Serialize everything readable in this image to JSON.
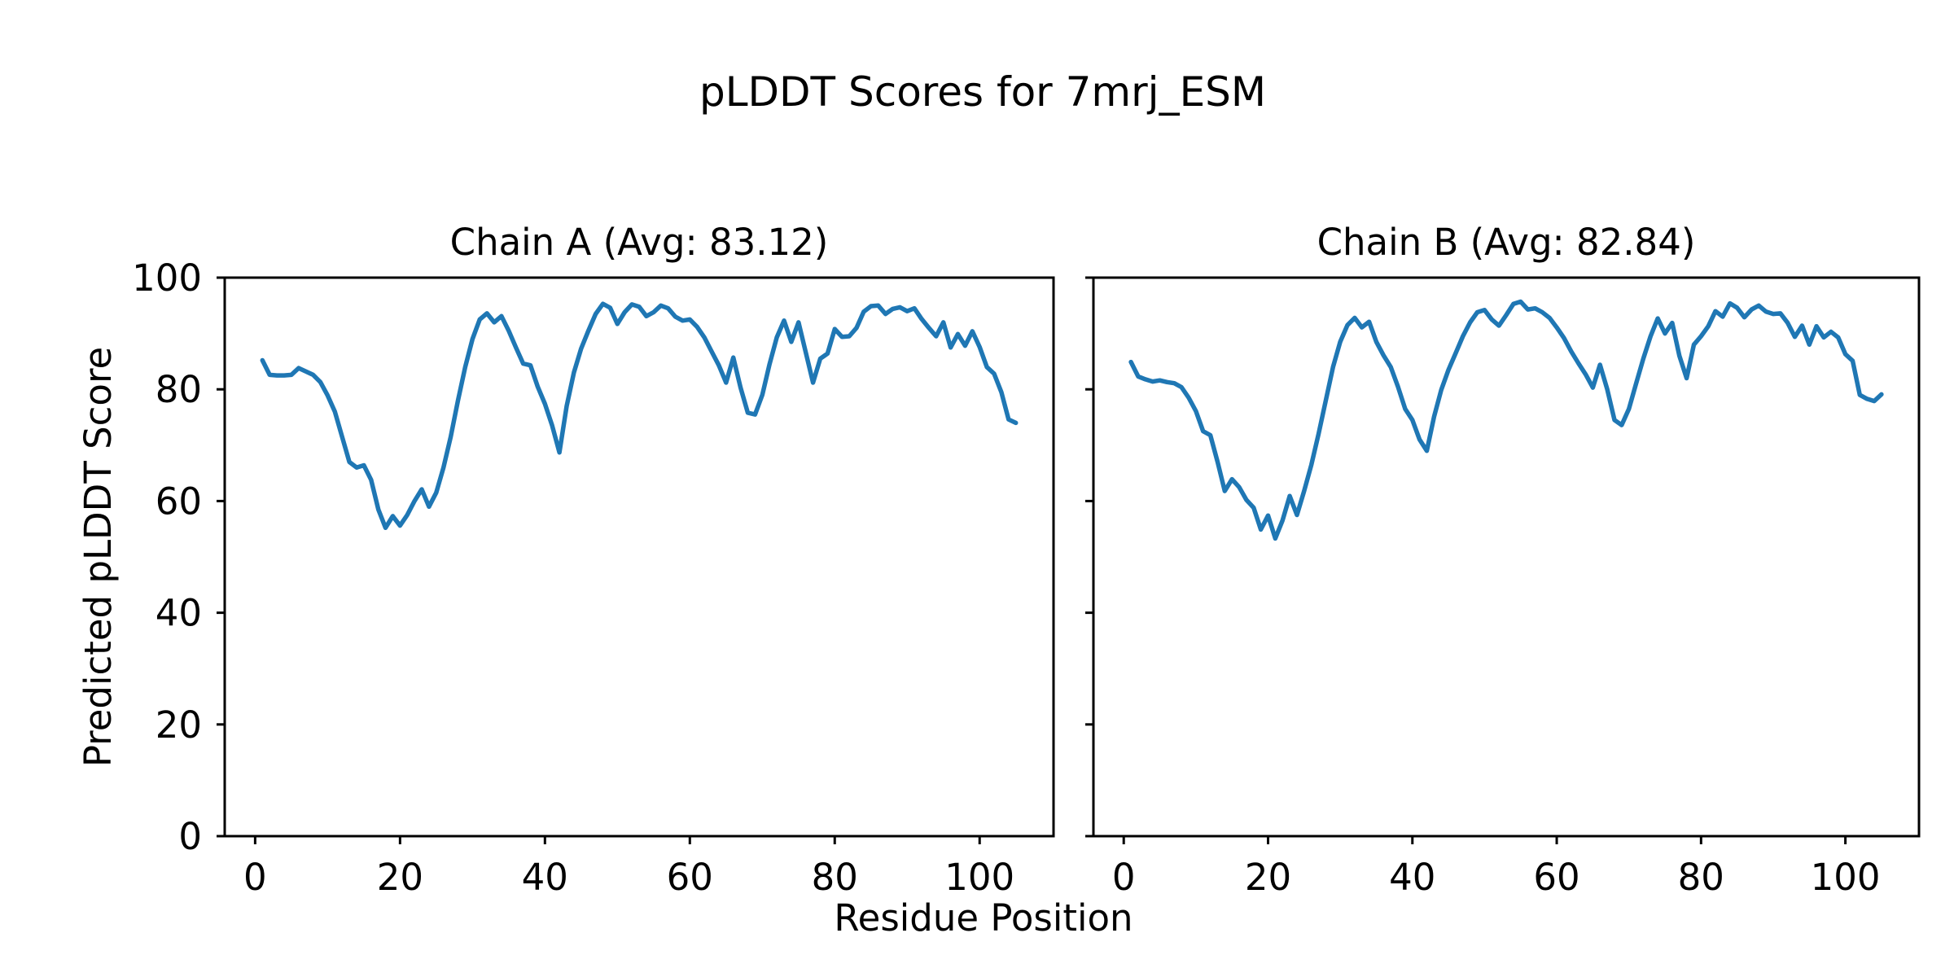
{
  "figure": {
    "suptitle": "pLDDT Scores for 7mrj_ESM",
    "supxlabel": "Residue Position",
    "ylabel": "Predicted pLDDT Score",
    "line_color": "#1f77b4",
    "axis_color": "#000000",
    "background_color": "#ffffff"
  },
  "chart_data": [
    {
      "type": "line",
      "title": "Chain A (Avg: 83.12)",
      "chain": "A",
      "average": 83.12,
      "xlabel": "Residue Position",
      "ylabel": "Predicted pLDDT Score",
      "x_start": 1,
      "x_step": 1,
      "xlim": [
        -4.2,
        110.2
      ],
      "ylim": [
        0,
        100
      ],
      "xticks": [
        0,
        20,
        40,
        60,
        80,
        100
      ],
      "yticks": [
        0,
        20,
        40,
        60,
        80,
        100
      ],
      "show_ytick_labels": true,
      "grid": false,
      "legend": "none",
      "values": [
        85.2,
        82.6,
        82.5,
        82.5,
        82.6,
        83.8,
        83.2,
        82.6,
        81.3,
        78.9,
        76.0,
        71.5,
        67.0,
        66.0,
        66.4,
        63.8,
        58.5,
        55.2,
        57.3,
        55.6,
        57.5,
        60.0,
        62.1,
        59.0,
        61.5,
        66.0,
        71.5,
        78.0,
        84.0,
        89.0,
        92.5,
        93.6,
        92.0,
        93.1,
        90.5,
        87.5,
        84.6,
        84.3,
        80.5,
        77.4,
        73.5,
        68.7,
        77.0,
        83.0,
        87.3,
        90.5,
        93.5,
        95.3,
        94.6,
        91.7,
        93.8,
        95.2,
        94.8,
        93.1,
        93.8,
        95.0,
        94.5,
        93.0,
        92.3,
        92.5,
        91.2,
        89.3,
        86.8,
        84.3,
        81.2,
        85.7,
        80.3,
        75.8,
        75.5,
        79.0,
        84.5,
        89.3,
        92.3,
        88.5,
        92.0,
        86.6,
        81.2,
        85.5,
        86.4,
        90.8,
        89.4,
        89.5,
        91.0,
        93.9,
        94.9,
        95.0,
        93.5,
        94.4,
        94.7,
        94.0,
        94.5,
        92.6,
        91.0,
        89.5,
        92.0,
        87.5,
        89.9,
        87.8,
        90.4,
        87.6,
        84.0,
        82.8,
        79.5,
        74.6,
        74.0
      ]
    },
    {
      "type": "line",
      "title": "Chain B (Avg: 82.84)",
      "chain": "B",
      "average": 82.84,
      "xlabel": "Residue Position",
      "ylabel": "Predicted pLDDT Score",
      "x_start": 1,
      "x_step": 1,
      "xlim": [
        -4.2,
        110.2
      ],
      "ylim": [
        0,
        100
      ],
      "xticks": [
        0,
        20,
        40,
        60,
        80,
        100
      ],
      "yticks": [
        0,
        20,
        40,
        60,
        80,
        100
      ],
      "show_ytick_labels": false,
      "grid": false,
      "legend": "none",
      "values": [
        84.9,
        82.3,
        81.8,
        81.4,
        81.6,
        81.3,
        81.1,
        80.4,
        78.5,
        76.1,
        72.5,
        71.8,
        67.0,
        61.8,
        63.9,
        62.5,
        60.2,
        58.8,
        54.9,
        57.4,
        53.3,
        56.5,
        60.9,
        57.5,
        61.8,
        66.5,
        72.0,
        78.0,
        84.0,
        88.5,
        91.5,
        92.8,
        91.1,
        92.1,
        88.5,
        86.1,
        84.0,
        80.5,
        76.5,
        74.5,
        71.0,
        69.0,
        75.1,
        79.9,
        83.5,
        86.5,
        89.5,
        92.0,
        93.8,
        94.2,
        92.5,
        91.4,
        93.3,
        95.3,
        95.7,
        94.3,
        94.5,
        93.8,
        92.8,
        91.1,
        89.2,
        86.8,
        84.7,
        82.7,
        80.3,
        84.4,
        80.0,
        74.5,
        73.6,
        76.5,
        81.0,
        85.5,
        89.5,
        92.7,
        90.0,
        91.9,
        86.0,
        82.0,
        88.0,
        89.5,
        91.3,
        94.0,
        93.0,
        95.4,
        94.6,
        92.9,
        94.3,
        95.0,
        93.9,
        93.5,
        93.6,
        91.9,
        89.4,
        91.4,
        88.0,
        91.3,
        89.3,
        90.3,
        89.3,
        86.3,
        85.1,
        79.0,
        78.3,
        77.9,
        79.1
      ]
    }
  ]
}
